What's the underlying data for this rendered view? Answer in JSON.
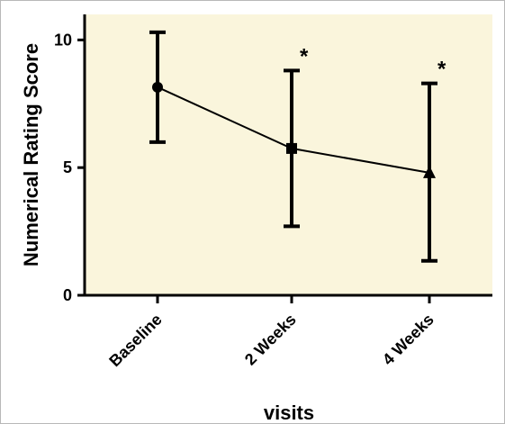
{
  "chart_data": {
    "type": "line",
    "title": "",
    "xlabel": "visits",
    "ylabel": "Numerical Rating Score",
    "categories": [
      "Baseline",
      "2 Weeks",
      "4 Weeks"
    ],
    "series": [
      {
        "values": [
          8.15,
          5.75,
          4.8
        ],
        "error_low": [
          6.0,
          2.7,
          1.35
        ],
        "error_high": [
          10.3,
          8.8,
          8.3
        ],
        "markers": [
          "circle",
          "square",
          "triangle"
        ]
      }
    ],
    "annotations": [
      "",
      "*",
      "*"
    ],
    "ylim": [
      0,
      11
    ],
    "yticks": [
      "0",
      "5",
      "10"
    ],
    "grid": false,
    "colors": {
      "plot_background": "#faf5dc",
      "series": "#000000"
    }
  }
}
